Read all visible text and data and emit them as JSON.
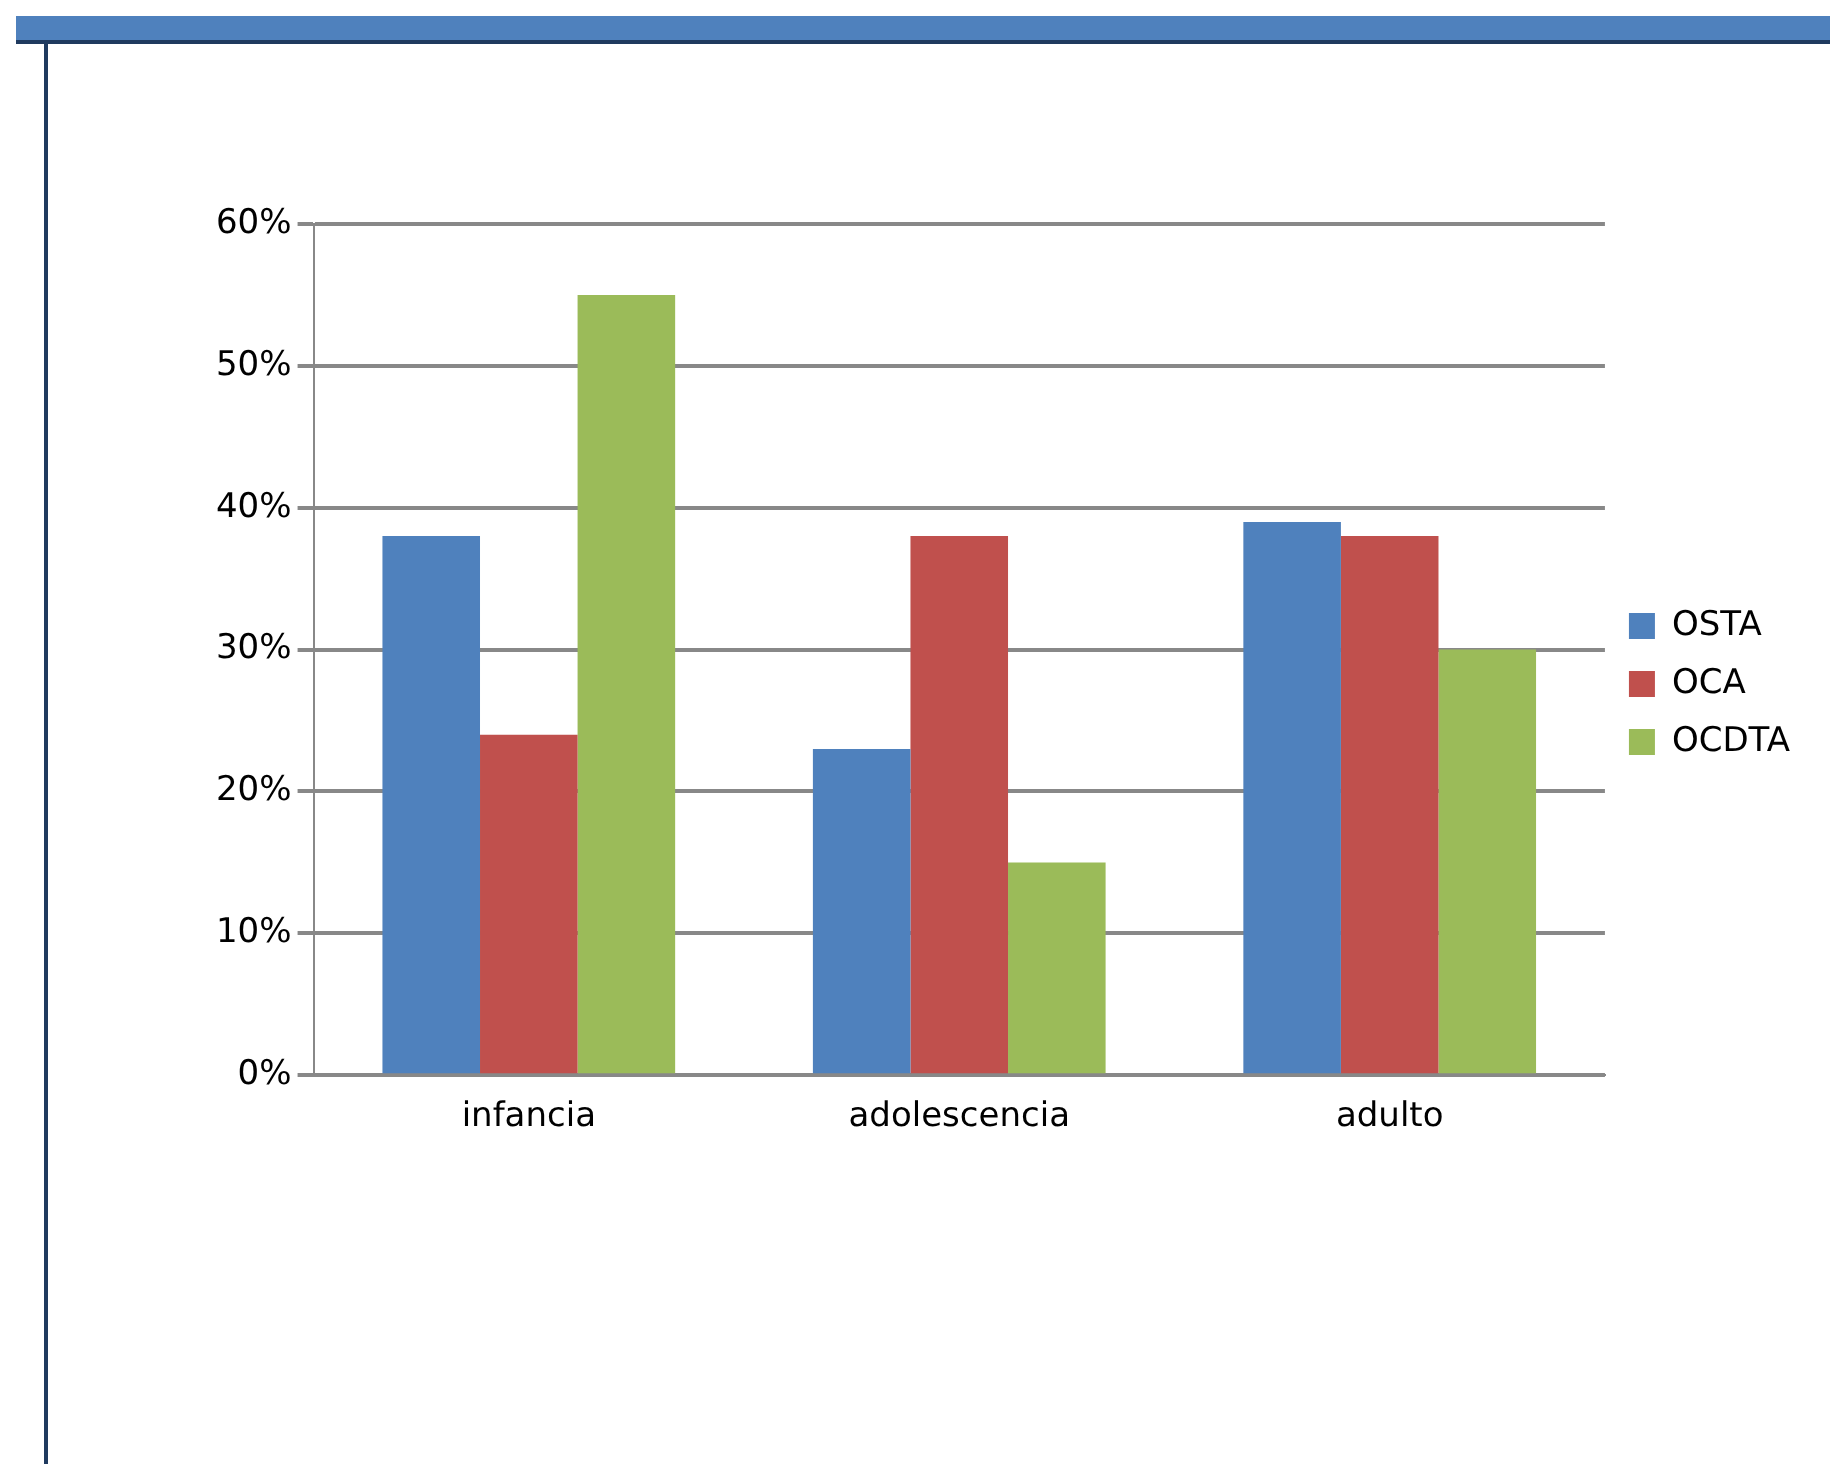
{
  "chart_data": {
    "type": "bar",
    "categories": [
      "infancia",
      "adolescencia",
      "adulto"
    ],
    "series": [
      {
        "name": "OSTA",
        "color": "#4f81bd",
        "values": [
          38,
          23,
          39
        ]
      },
      {
        "name": "OCA",
        "color": "#c0504d",
        "values": [
          24,
          38,
          38
        ]
      },
      {
        "name": "OCDTA",
        "color": "#9bbb59",
        "values": [
          55,
          15,
          30
        ]
      }
    ],
    "ylim": [
      0,
      60
    ],
    "yticks": [
      {
        "value": 0,
        "label": "0%"
      },
      {
        "value": 10,
        "label": "10%"
      },
      {
        "value": 20,
        "label": "20%"
      },
      {
        "value": 30,
        "label": "30%"
      },
      {
        "value": 40,
        "label": "40%"
      },
      {
        "value": 50,
        "label": "50%"
      },
      {
        "value": 60,
        "label": "60%"
      }
    ],
    "grid": "y",
    "legend": "right"
  }
}
